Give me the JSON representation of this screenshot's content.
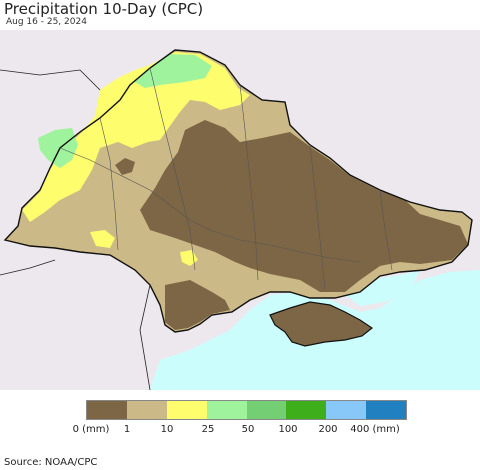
{
  "header": {
    "title": "Precipitation 10-Day (CPC)",
    "subtitle": "Aug 16 - 25, 2024"
  },
  "legend": {
    "colors": [
      "#7d6645",
      "#cbb987",
      "#fdfd6e",
      "#9ef39c",
      "#74cf74",
      "#3fae1b",
      "#88c8f8",
      "#2080c0"
    ],
    "labels": [
      "0 (mm)",
      "1",
      "10",
      "25",
      "50",
      "100",
      "200",
      "400 (mm)"
    ]
  },
  "map": {
    "colors": {
      "background": "#ffffff",
      "neighbor_land": "#ece8ee",
      "sea": "#ccfdfd",
      "dry": "#7d6645",
      "light": "#cbb987",
      "moderate": "#fdfd6e",
      "wet": "#9ef39c",
      "border": "#111111",
      "oblast_border": "#555555"
    }
  },
  "footer": {
    "source": "Source: NOAA/CPC"
  }
}
